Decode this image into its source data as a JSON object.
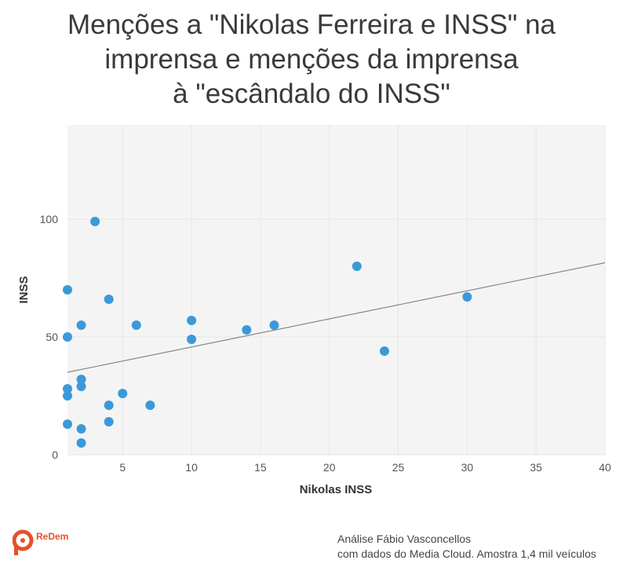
{
  "title_lines": [
    "Menções a \"Nikolas Ferreira e INSS\" na",
    "imprensa e menções da imprensa",
    "à \"escândalo do INSS\""
  ],
  "logo": {
    "name": "ReDem",
    "icon": "redem-logo-icon",
    "color": "#e8502a"
  },
  "credit": {
    "line1": "Análise Fábio Vasconcellos",
    "line2": "com dados do Media Cloud. Amostra 1,4 mil veículos"
  },
  "chart_data": {
    "type": "scatter",
    "title": "Menções a \"Nikolas Ferreira e INSS\" na imprensa e menções da imprensa à \"escândalo do INSS\"",
    "xlabel": "Nikolas INSS",
    "ylabel": "INSS",
    "xlim": [
      1,
      40
    ],
    "ylim": [
      0,
      140
    ],
    "xticks": [
      5,
      10,
      15,
      20,
      25,
      30,
      35,
      40
    ],
    "yticks": [
      0,
      50,
      100
    ],
    "grid": true,
    "point_color": "#3a9ad9",
    "trendline": {
      "color": "#888888",
      "from": [
        1,
        35
      ],
      "to": [
        40,
        81.5
      ]
    },
    "points": [
      {
        "x": 1,
        "y": 70
      },
      {
        "x": 1,
        "y": 50
      },
      {
        "x": 1,
        "y": 28
      },
      {
        "x": 1,
        "y": 25
      },
      {
        "x": 1,
        "y": 13
      },
      {
        "x": 2,
        "y": 55
      },
      {
        "x": 2,
        "y": 32
      },
      {
        "x": 2,
        "y": 29
      },
      {
        "x": 2,
        "y": 11
      },
      {
        "x": 2,
        "y": 5
      },
      {
        "x": 3,
        "y": 99
      },
      {
        "x": 4,
        "y": 66
      },
      {
        "x": 4,
        "y": 21
      },
      {
        "x": 4,
        "y": 14
      },
      {
        "x": 5,
        "y": 26
      },
      {
        "x": 6,
        "y": 55
      },
      {
        "x": 7,
        "y": 21
      },
      {
        "x": 10,
        "y": 57
      },
      {
        "x": 10,
        "y": 49
      },
      {
        "x": 14,
        "y": 53
      },
      {
        "x": 16,
        "y": 55
      },
      {
        "x": 22,
        "y": 80
      },
      {
        "x": 24,
        "y": 44
      },
      {
        "x": 30,
        "y": 67
      }
    ]
  }
}
